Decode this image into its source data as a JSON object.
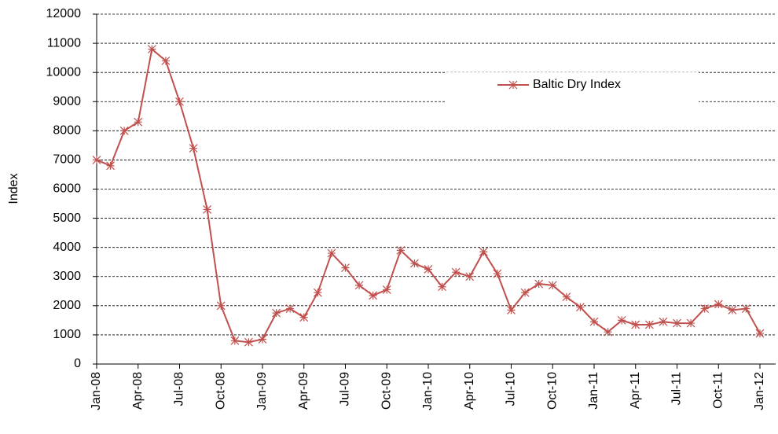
{
  "chart_data": {
    "type": "line",
    "y_label": "Index",
    "categories": [
      "Jan-08",
      null,
      null,
      "Apr-08",
      null,
      null,
      "Jul-08",
      null,
      null,
      "Oct-08",
      null,
      null,
      "Jan-09",
      null,
      null,
      "Apr-09",
      null,
      null,
      "Jul-09",
      null,
      null,
      "Oct-09",
      null,
      null,
      "Jan-10",
      null,
      null,
      "Apr-10",
      null,
      null,
      "Jul-10",
      null,
      null,
      "Oct-10",
      null,
      null,
      "Jan-11",
      null,
      null,
      "Apr-11",
      null,
      null,
      "Jul-11",
      null,
      null,
      "Oct-11",
      null,
      null,
      "Jan-12"
    ],
    "series": [
      {
        "name": "Baltic Dry Index",
        "color": "#c0504d",
        "values": [
          7000,
          6800,
          8000,
          8300,
          10800,
          10400,
          9000,
          7400,
          5300,
          2000,
          800,
          750,
          850,
          1750,
          1900,
          1600,
          2450,
          3800,
          3300,
          2700,
          2350,
          2550,
          3900,
          3450,
          3250,
          2650,
          3150,
          3000,
          3850,
          3100,
          1850,
          2450,
          2750,
          2700,
          2300,
          1950,
          1450,
          1100,
          1500,
          1350,
          1350,
          1450,
          1400,
          1400,
          1900,
          2050,
          1850,
          1900,
          1050
        ]
      }
    ],
    "ylim": [
      0,
      12000
    ],
    "yticks": [
      0,
      1000,
      2000,
      3000,
      4000,
      5000,
      6000,
      7000,
      8000,
      9000,
      10000,
      11000,
      12000
    ],
    "grid": true,
    "legend": "upper right"
  }
}
